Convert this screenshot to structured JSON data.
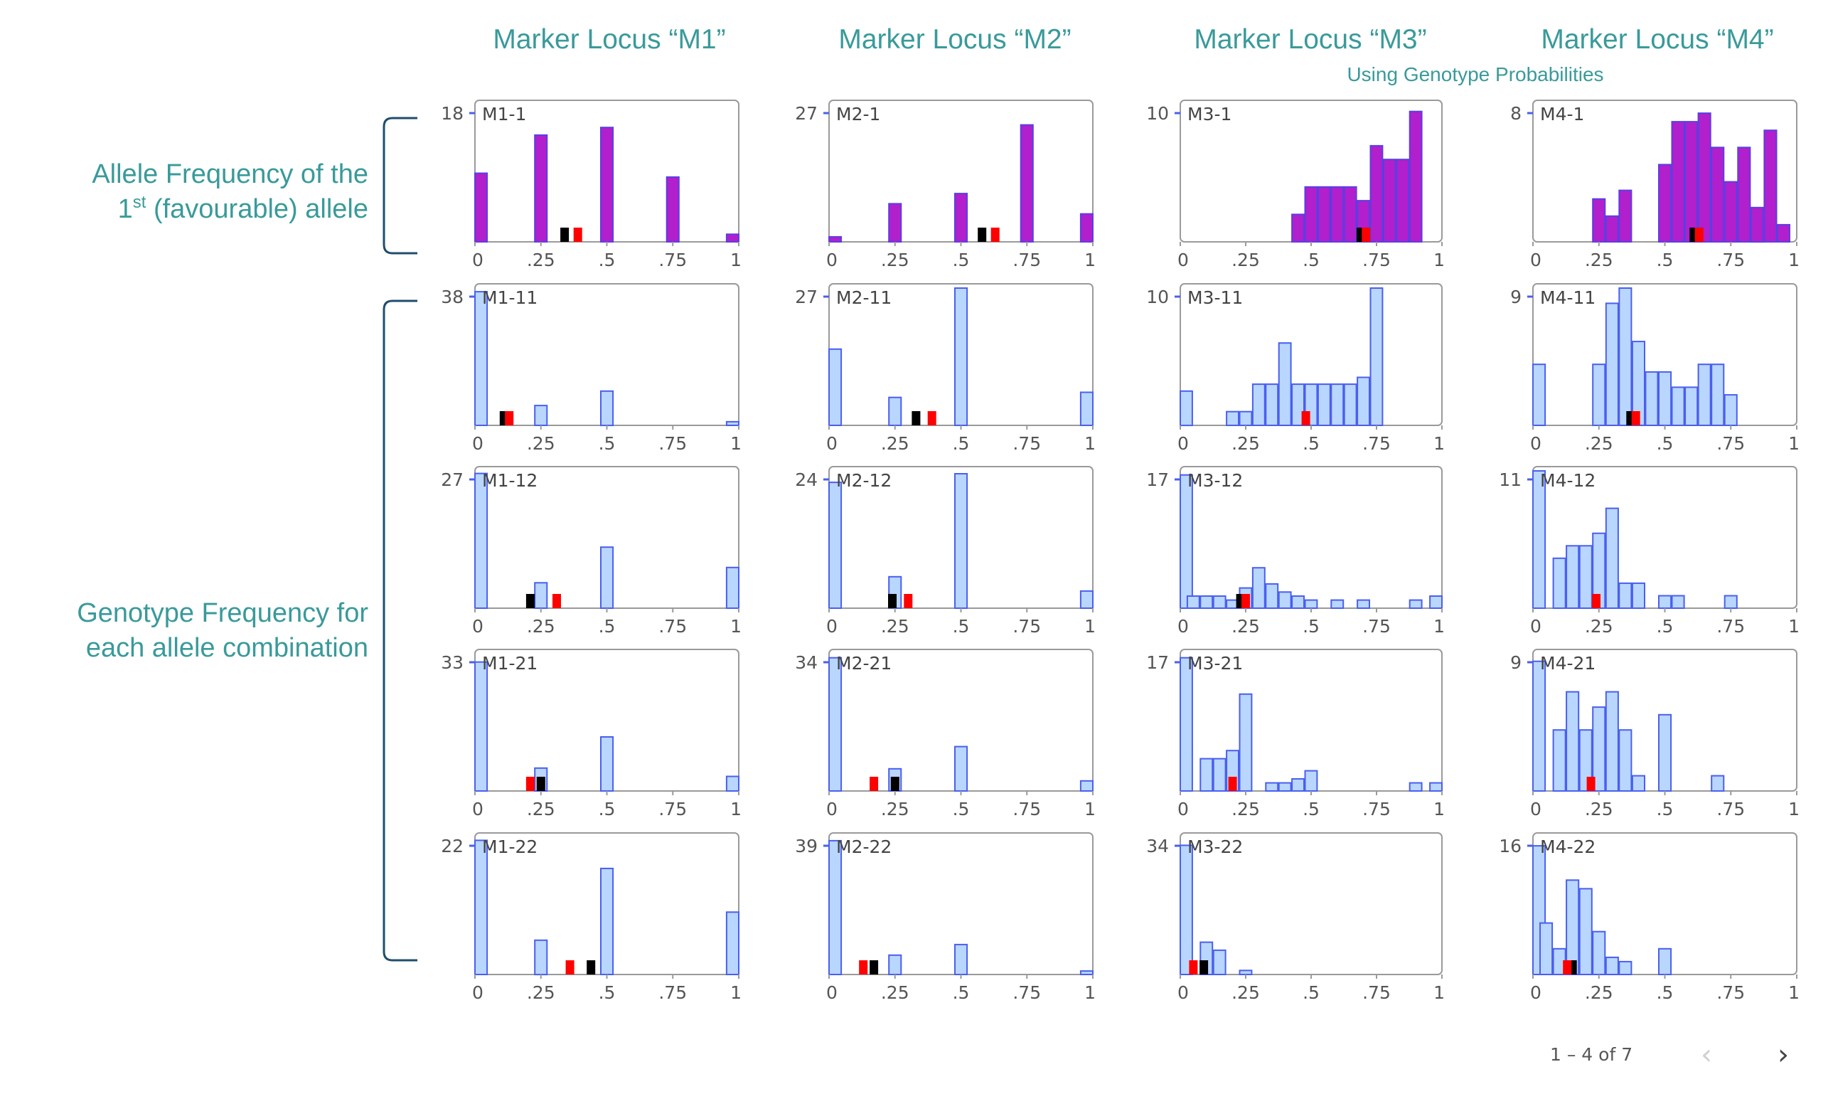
{
  "header": {
    "columns": [
      "Marker Locus “M1”",
      "Marker Locus “M2”",
      "Marker Locus “M3”",
      "Marker Locus “M4”"
    ],
    "note": "Using Genotype Probabilities"
  },
  "row_labels": {
    "allele": [
      "Allele Frequency of the",
      "(favourable) allele"
    ],
    "allele_prefix": "1",
    "allele_sup": "st",
    "genotype": [
      "Genotype Frequency for",
      "each allele combination"
    ]
  },
  "pager": {
    "text": "1 – 4 of 7",
    "prev_icon": "‹",
    "next_icon": "›"
  },
  "colors": {
    "title": "#3a9a9a",
    "allele_fill": "#b21fcc",
    "allele_stroke": "#5a3fe0",
    "geno_fill": "#b9d6ff",
    "geno_stroke": "#4a5ff0",
    "frame": "#9a9a9a",
    "bracket": "#1f4e6e",
    "marker_black": "#000000",
    "marker_red": "#ff0000"
  },
  "chart_data": [
    {
      "type": "bar",
      "title": "M1-1",
      "ymax": 18,
      "xticks": [
        "0",
        ".25",
        ".5",
        ".75",
        "1"
      ],
      "xlim": [
        0,
        1
      ],
      "bins": [
        [
          0,
          9
        ],
        [
          0.25,
          14
        ],
        [
          0.5,
          15
        ],
        [
          0.75,
          8.5
        ],
        [
          1,
          1
        ]
      ],
      "markers": {
        "black": 0.34,
        "red": 0.39
      }
    },
    {
      "type": "bar",
      "title": "M2-1",
      "ymax": 27,
      "xticks": [
        "0",
        ".25",
        ".5",
        ".75",
        "1"
      ],
      "xlim": [
        0,
        1
      ],
      "bins": [
        [
          0,
          1
        ],
        [
          0.25,
          7.5
        ],
        [
          0.5,
          9.5
        ],
        [
          0.75,
          23
        ],
        [
          1,
          5.5
        ]
      ],
      "markers": {
        "black": 0.58,
        "red": 0.63
      }
    },
    {
      "type": "bar",
      "title": "M3-1",
      "ymax": 10,
      "xticks": [
        "0",
        ".25",
        ".5",
        ".75",
        "1"
      ],
      "xlim": [
        0,
        1
      ],
      "bins": [
        [
          0.45,
          2
        ],
        [
          0.5,
          4
        ],
        [
          0.55,
          4
        ],
        [
          0.6,
          4
        ],
        [
          0.65,
          4
        ],
        [
          0.7,
          3
        ],
        [
          0.75,
          7
        ],
        [
          0.8,
          6
        ],
        [
          0.85,
          6
        ],
        [
          0.9,
          9.5
        ]
      ],
      "markers": {
        "black": 0.69,
        "red": 0.71
      }
    },
    {
      "type": "bar",
      "title": "M4-1",
      "ymax": 8,
      "xticks": [
        "0",
        ".25",
        ".5",
        ".75",
        "1"
      ],
      "xlim": [
        0,
        1
      ],
      "bins": [
        [
          0.25,
          2.5
        ],
        [
          0.3,
          1.5
        ],
        [
          0.35,
          3
        ],
        [
          0.5,
          4.5
        ],
        [
          0.55,
          7
        ],
        [
          0.6,
          7
        ],
        [
          0.65,
          7.5
        ],
        [
          0.7,
          5.5
        ],
        [
          0.75,
          3.5
        ],
        [
          0.8,
          5.5
        ],
        [
          0.85,
          2
        ],
        [
          0.9,
          6.5
        ],
        [
          0.95,
          1
        ]
      ],
      "markers": {
        "black": 0.61,
        "red": 0.63
      }
    },
    {
      "type": "bar",
      "title": "M1-11",
      "ymax": 38,
      "xticks": [
        "0",
        ".25",
        ".5",
        ".75",
        "1"
      ],
      "xlim": [
        0,
        1
      ],
      "bins": [
        [
          0,
          37
        ],
        [
          0.25,
          5.5
        ],
        [
          0.5,
          9.5
        ],
        [
          1,
          1
        ]
      ],
      "markers": {
        "black": 0.11,
        "red": 0.13
      }
    },
    {
      "type": "bar",
      "title": "M2-11",
      "ymax": 27,
      "xticks": [
        "0",
        ".25",
        ".5",
        ".75",
        "1"
      ],
      "xlim": [
        0,
        1
      ],
      "bins": [
        [
          0,
          15
        ],
        [
          0.25,
          5.5
        ],
        [
          0.5,
          27
        ],
        [
          1,
          6.5
        ]
      ],
      "markers": {
        "black": 0.33,
        "red": 0.39
      }
    },
    {
      "type": "bar",
      "title": "M3-11",
      "ymax": 10,
      "xticks": [
        "0",
        ".25",
        ".5",
        ".75",
        "1"
      ],
      "xlim": [
        0,
        1
      ],
      "bins": [
        [
          0,
          2.5
        ],
        [
          0.2,
          1
        ],
        [
          0.25,
          1
        ],
        [
          0.3,
          3
        ],
        [
          0.35,
          3
        ],
        [
          0.4,
          6
        ],
        [
          0.45,
          3
        ],
        [
          0.5,
          3
        ],
        [
          0.55,
          3
        ],
        [
          0.6,
          3
        ],
        [
          0.65,
          3
        ],
        [
          0.7,
          3.5
        ],
        [
          0.75,
          10
        ]
      ],
      "markers": {
        "red": 0.48
      }
    },
    {
      "type": "bar",
      "title": "M4-11",
      "ymax": 9,
      "xticks": [
        "0",
        ".25",
        ".5",
        ".75",
        "1"
      ],
      "xlim": [
        0,
        1
      ],
      "bins": [
        [
          0,
          4
        ],
        [
          0.25,
          4
        ],
        [
          0.3,
          8
        ],
        [
          0.35,
          9
        ],
        [
          0.4,
          5.5
        ],
        [
          0.45,
          3.5
        ],
        [
          0.5,
          3.5
        ],
        [
          0.55,
          2.5
        ],
        [
          0.6,
          2.5
        ],
        [
          0.65,
          4
        ],
        [
          0.7,
          4
        ],
        [
          0.75,
          2
        ]
      ],
      "markers": {
        "black": 0.37,
        "red": 0.39
      }
    },
    {
      "type": "bar",
      "title": "M1-12",
      "ymax": 27,
      "xticks": [
        "0",
        ".25",
        ".5",
        ".75",
        "1"
      ],
      "xlim": [
        0,
        1
      ],
      "bins": [
        [
          0,
          26.5
        ],
        [
          0.25,
          5
        ],
        [
          0.5,
          12
        ],
        [
          1,
          8
        ]
      ],
      "markers": {
        "black": 0.21,
        "red": 0.31
      }
    },
    {
      "type": "bar",
      "title": "M2-12",
      "ymax": 24,
      "xticks": [
        "0",
        ".25",
        ".5",
        ".75",
        "1"
      ],
      "xlim": [
        0,
        1
      ],
      "bins": [
        [
          0,
          22
        ],
        [
          0.25,
          5.5
        ],
        [
          0.5,
          23.5
        ],
        [
          1,
          3
        ]
      ],
      "markers": {
        "black": 0.24,
        "red": 0.3
      }
    },
    {
      "type": "bar",
      "title": "M3-12",
      "ymax": 17,
      "xticks": [
        "0",
        ".25",
        ".5",
        ".75",
        "1"
      ],
      "xlim": [
        0,
        1
      ],
      "bins": [
        [
          0,
          16.5
        ],
        [
          0.05,
          1.5
        ],
        [
          0.1,
          1.5
        ],
        [
          0.15,
          1.5
        ],
        [
          0.2,
          1
        ],
        [
          0.25,
          2.5
        ],
        [
          0.3,
          5
        ],
        [
          0.35,
          3
        ],
        [
          0.4,
          2
        ],
        [
          0.45,
          1.5
        ],
        [
          0.5,
          1
        ],
        [
          0.6,
          1
        ],
        [
          0.7,
          1
        ],
        [
          0.9,
          1
        ],
        [
          1,
          1.5
        ]
      ],
      "markers": {
        "black": 0.23,
        "red": 0.25
      }
    },
    {
      "type": "bar",
      "title": "M4-12",
      "ymax": 11,
      "xticks": [
        "0",
        ".25",
        ".5",
        ".75",
        "1"
      ],
      "xlim": [
        0,
        1
      ],
      "bins": [
        [
          0,
          11
        ],
        [
          0.1,
          4
        ],
        [
          0.15,
          5
        ],
        [
          0.2,
          5
        ],
        [
          0.25,
          6
        ],
        [
          0.3,
          8
        ],
        [
          0.35,
          2
        ],
        [
          0.4,
          2
        ],
        [
          0.5,
          1
        ],
        [
          0.55,
          1
        ],
        [
          0.75,
          1
        ]
      ],
      "markers": {
        "red": 0.24
      }
    },
    {
      "type": "bar",
      "title": "M1-21",
      "ymax": 33,
      "xticks": [
        "0",
        ".25",
        ".5",
        ".75",
        "1"
      ],
      "xlim": [
        0,
        1
      ],
      "bins": [
        [
          0,
          31
        ],
        [
          0.25,
          5.5
        ],
        [
          0.5,
          13
        ],
        [
          1,
          3.5
        ]
      ],
      "markers": {
        "black": 0.25,
        "red": 0.21
      }
    },
    {
      "type": "bar",
      "title": "M2-21",
      "ymax": 34,
      "xticks": [
        "0",
        ".25",
        ".5",
        ".75",
        "1"
      ],
      "xlim": [
        0,
        1
      ],
      "bins": [
        [
          0,
          33
        ],
        [
          0.25,
          5.5
        ],
        [
          0.5,
          11
        ],
        [
          1,
          2.5
        ]
      ],
      "markers": {
        "black": 0.25,
        "red": 0.17
      }
    },
    {
      "type": "bar",
      "title": "M3-21",
      "ymax": 17,
      "xticks": [
        "0",
        ".25",
        ".5",
        ".75",
        "1"
      ],
      "xlim": [
        0,
        1
      ],
      "bins": [
        [
          0,
          16.5
        ],
        [
          0.1,
          4
        ],
        [
          0.15,
          4
        ],
        [
          0.2,
          5
        ],
        [
          0.25,
          12
        ],
        [
          0.35,
          1
        ],
        [
          0.4,
          1
        ],
        [
          0.45,
          1.5
        ],
        [
          0.5,
          2.5
        ],
        [
          0.9,
          1
        ],
        [
          1,
          1
        ]
      ],
      "markers": {
        "red": 0.2
      }
    },
    {
      "type": "bar",
      "title": "M4-21",
      "ymax": 9,
      "xticks": [
        "0",
        ".25",
        ".5",
        ".75",
        "1"
      ],
      "xlim": [
        0,
        1
      ],
      "bins": [
        [
          0,
          8.5
        ],
        [
          0.1,
          4
        ],
        [
          0.15,
          6.5
        ],
        [
          0.2,
          4
        ],
        [
          0.25,
          5.5
        ],
        [
          0.3,
          6.5
        ],
        [
          0.35,
          4
        ],
        [
          0.4,
          1
        ],
        [
          0.5,
          5
        ],
        [
          0.7,
          1
        ]
      ],
      "markers": {
        "red": 0.22
      }
    },
    {
      "type": "bar",
      "title": "M1-22",
      "ymax": 22,
      "xticks": [
        "0",
        ".25",
        ".5",
        ".75",
        "1"
      ],
      "xlim": [
        0,
        1
      ],
      "bins": [
        [
          0,
          21.5
        ],
        [
          0.25,
          5.5
        ],
        [
          0.5,
          17
        ],
        [
          1,
          10
        ]
      ],
      "markers": {
        "black": 0.44,
        "red": 0.36
      }
    },
    {
      "type": "bar",
      "title": "M2-22",
      "ymax": 39,
      "xticks": [
        "0",
        ".25",
        ".5",
        ".75",
        "1"
      ],
      "xlim": [
        0,
        1
      ],
      "bins": [
        [
          0,
          38
        ],
        [
          0.25,
          5.5
        ],
        [
          0.5,
          8.5
        ],
        [
          1,
          1
        ]
      ],
      "markers": {
        "black": 0.17,
        "red": 0.13
      }
    },
    {
      "type": "bar",
      "title": "M3-22",
      "ymax": 34,
      "xticks": [
        "0",
        ".25",
        ".5",
        ".75",
        "1"
      ],
      "xlim": [
        0,
        1
      ],
      "bins": [
        [
          0,
          32
        ],
        [
          0.1,
          8
        ],
        [
          0.15,
          6
        ],
        [
          0.25,
          1
        ]
      ],
      "markers": {
        "black": 0.09,
        "red": 0.05
      }
    },
    {
      "type": "bar",
      "title": "M4-22",
      "ymax": 16,
      "xticks": [
        "0",
        ".25",
        ".5",
        ".75",
        "1"
      ],
      "xlim": [
        0,
        1
      ],
      "bins": [
        [
          0,
          15
        ],
        [
          0.05,
          6
        ],
        [
          0.1,
          3
        ],
        [
          0.15,
          11
        ],
        [
          0.2,
          10
        ],
        [
          0.25,
          5
        ],
        [
          0.3,
          2
        ],
        [
          0.35,
          1.5
        ],
        [
          0.5,
          3
        ]
      ],
      "markers": {
        "black": 0.15,
        "red": 0.13
      }
    }
  ]
}
